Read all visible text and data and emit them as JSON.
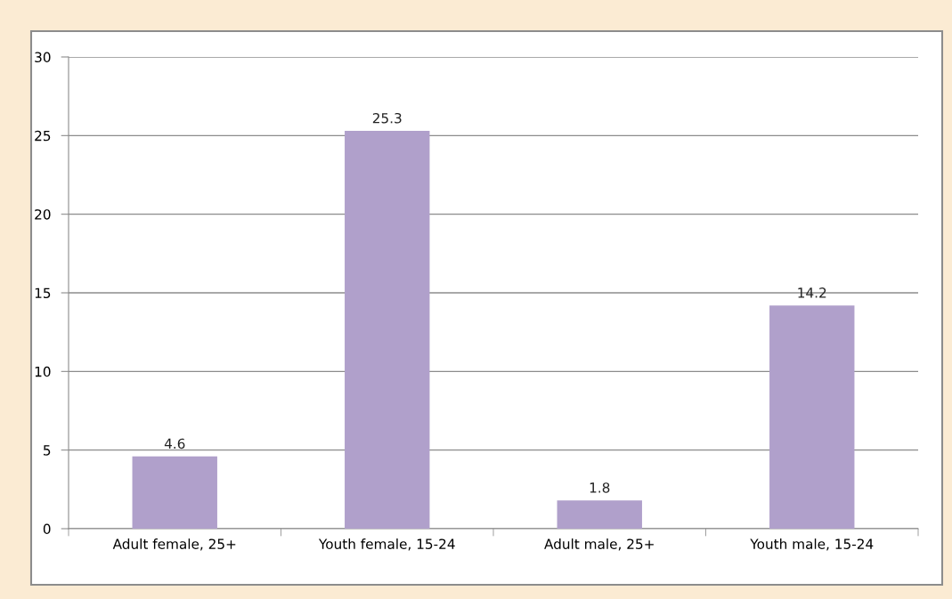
{
  "chart_data": {
    "type": "bar",
    "categories": [
      "Adult female, 25+",
      "Youth female, 15-24",
      "Adult male, 25+",
      "Youth male, 15-24"
    ],
    "values": [
      4.6,
      25.3,
      1.8,
      14.2
    ],
    "color": "#b0a0cb",
    "ylim": [
      0,
      30
    ],
    "yticks": [
      0,
      5,
      10,
      15,
      20,
      25,
      30
    ],
    "grid": "y",
    "data_labels": true
  }
}
